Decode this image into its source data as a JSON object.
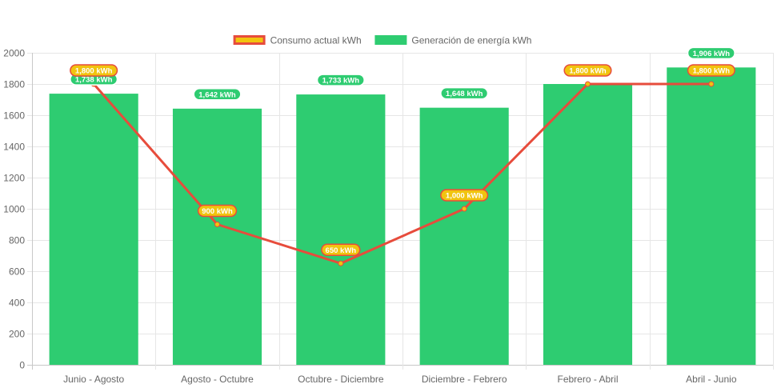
{
  "chart_data": {
    "type": "bar",
    "categories": [
      "Junio - Agosto",
      "Agosto - Octubre",
      "Octubre - Diciembre",
      "Diciembre - Febrero",
      "Febrero - Abril",
      "Abril - Junio"
    ],
    "series": [
      {
        "name": "Generación de energía kWh",
        "type": "bar",
        "values": [
          1738,
          1642,
          1733,
          1648,
          1800,
          1906
        ],
        "labels": [
          "1,738 kWh",
          "1,642 kWh",
          "1,733 kWh",
          "1,648 kWh",
          "1,800 kWh",
          "1,906 kWh"
        ],
        "color": "#2ecc71"
      },
      {
        "name": "Consumo actual kWh",
        "type": "line",
        "values": [
          1800,
          900,
          650,
          1000,
          1800,
          1800
        ],
        "labels": [
          "1,800 kWh",
          "900 kWh",
          "650 kWh",
          "1,000 kWh",
          "1,800 kWh",
          "1,800 kWh"
        ],
        "color": "#e74c3c",
        "point_color": "#f1c40f"
      }
    ],
    "yticks": [
      "0",
      "200",
      "400",
      "600",
      "800",
      "1000",
      "1200",
      "1400",
      "1600",
      "1800",
      "2000"
    ],
    "ylim": [
      0,
      2000
    ],
    "grid": true,
    "legend_position": "top",
    "legend_order": [
      "Consumo actual kWh",
      "Generación de energía kWh"
    ]
  }
}
